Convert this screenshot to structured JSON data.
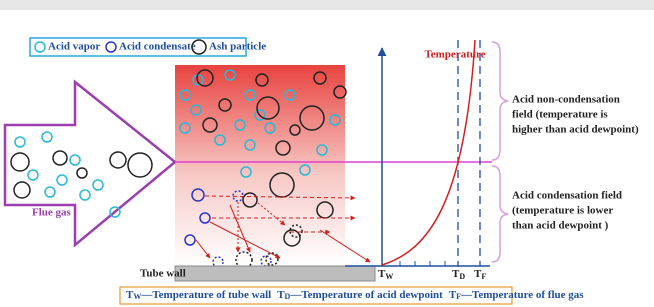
{
  "legend": {
    "items": [
      "Acid vapor",
      "Acid condensate",
      "Ash particle"
    ]
  },
  "axis_title": "Temperature",
  "flue_gas_label": "Flue gas",
  "tube_wall_label": "Tube wall",
  "axis_marks": [
    {
      "symbol": "T",
      "subscript": "W"
    },
    {
      "symbol": "T",
      "subscript": "D"
    },
    {
      "symbol": "T",
      "subscript": "F"
    }
  ],
  "zones": [
    {
      "lines": [
        "Acid non-condensation",
        "field (temperature is",
        "higher than acid dewpoint)"
      ]
    },
    {
      "lines": [
        "Acid condensation field",
        "(temperature is lower",
        "than acid dewpoint )"
      ]
    }
  ],
  "footer": [
    {
      "symbol": "T",
      "subscript": "W",
      "text": "—Temperature of tube wall"
    },
    {
      "symbol": "T",
      "subscript": "D",
      "text": "—Temperature of acid dewpoint"
    },
    {
      "symbol": "T",
      "subscript": "F",
      "text": "—Temperature of flue gas"
    }
  ]
}
